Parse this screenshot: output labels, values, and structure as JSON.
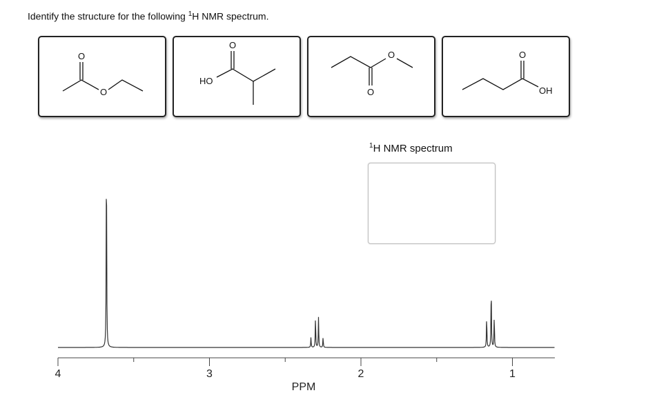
{
  "question": {
    "prefix": "Identify the structure for the following ",
    "sup": "1",
    "suffix": "H NMR spectrum."
  },
  "choices": [
    {
      "name": "ethyl acetate",
      "labels": [
        "O",
        "O"
      ]
    },
    {
      "name": "2-methylpropanoic acid",
      "labels": [
        "O",
        "HO"
      ]
    },
    {
      "name": "methyl propanoate",
      "labels": [
        "O",
        "O"
      ]
    },
    {
      "name": "butanoic acid",
      "labels": [
        "O",
        "OH"
      ]
    }
  ],
  "spectrum_label": {
    "sup": "1",
    "text": "H NMR spectrum"
  },
  "chart_data": {
    "type": "line",
    "xlabel": "PPM",
    "xlim": [
      4,
      0.72
    ],
    "x_reversed": true,
    "xticks": [
      4,
      3.5,
      3,
      2.5,
      2,
      1.5,
      1
    ],
    "xtick_labels": [
      "4",
      "",
      "3",
      "",
      "2",
      "",
      "1"
    ],
    "grid": false,
    "peaks": [
      {
        "ppm": 3.68,
        "intensity": 100,
        "multiplicity": "singlet"
      },
      {
        "ppm": 2.33,
        "intensity": 5
      },
      {
        "ppm": 2.3,
        "intensity": 15
      },
      {
        "ppm": 2.28,
        "intensity": 15
      },
      {
        "ppm": 2.25,
        "intensity": 5
      },
      {
        "ppm": 1.17,
        "intensity": 15.5
      },
      {
        "ppm": 1.14,
        "intensity": 30.5
      },
      {
        "ppm": 1.12,
        "intensity": 15.5
      }
    ]
  }
}
